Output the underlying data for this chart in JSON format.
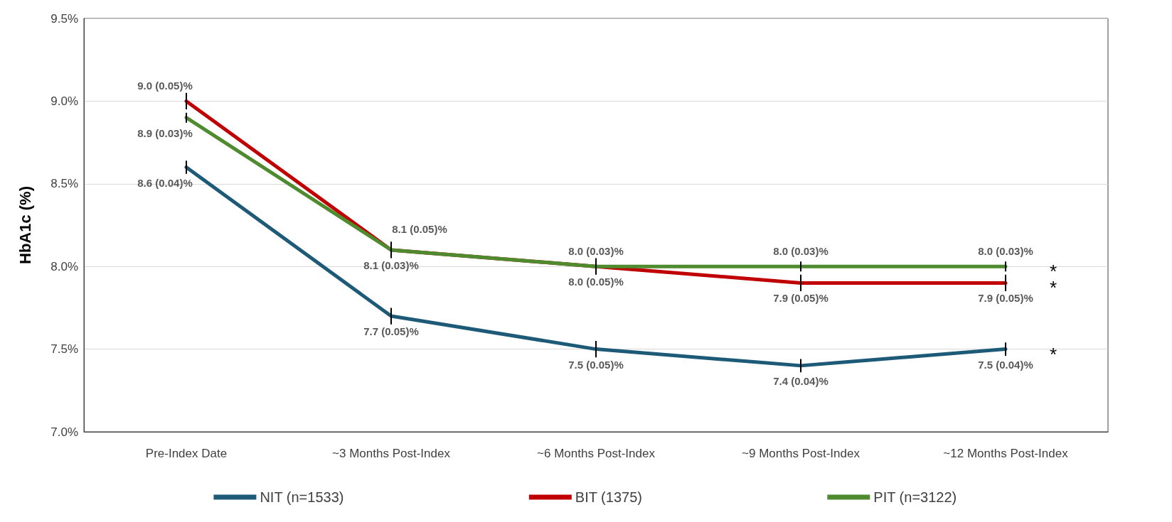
{
  "chart_data": {
    "type": "line",
    "ylabel": "HbA1c (%)",
    "categories": [
      "Pre-Index Date",
      "~3 Months Post-Index",
      "~6 Months Post-Index",
      "~9 Months Post-Index",
      "~12 Months Post-Index"
    ],
    "series": [
      {
        "name": "NIT (n=1533)",
        "color": "#1d5a78",
        "values": [
          8.6,
          7.7,
          7.5,
          7.4,
          7.5
        ],
        "errors": [
          0.04,
          0.05,
          0.05,
          0.04,
          0.04
        ],
        "value_labels": [
          "8.6 (0.04)%",
          "7.7 (0.05)%",
          "7.5 (0.05)%",
          "7.4 (0.04)%",
          "7.5 (0.04)%"
        ]
      },
      {
        "name": "BIT (1375)",
        "color": "#c00000",
        "values": [
          9.0,
          8.1,
          8.0,
          7.9,
          7.9
        ],
        "errors": [
          0.05,
          0.05,
          0.05,
          0.05,
          0.05
        ],
        "value_labels": [
          "9.0 (0.05)%",
          "8.1 (0.05)%",
          "8.0 (0.05)%",
          "7.9 (0.05)%",
          "7.9 (0.05)%"
        ]
      },
      {
        "name": "PIT (n=3122)",
        "color": "#4e8a2e",
        "values": [
          8.9,
          8.1,
          8.0,
          8.0,
          8.0
        ],
        "errors": [
          0.03,
          0.03,
          0.03,
          0.03,
          0.03
        ],
        "value_labels": [
          "8.9 (0.03)%",
          "8.1 (0.03)%",
          "8.0 (0.03)%",
          "8.0 (0.03)%",
          "8.0 (0.03)%"
        ]
      }
    ],
    "ylim": [
      7.0,
      9.5
    ],
    "yticks": [
      {
        "value": 7.0,
        "label": "7.0%"
      },
      {
        "value": 7.5,
        "label": "7.5%"
      },
      {
        "value": 8.0,
        "label": "8.0%"
      },
      {
        "value": 8.5,
        "label": "8.5%"
      },
      {
        "value": 9.0,
        "label": "9.0%"
      },
      {
        "value": 9.5,
        "label": "9.5%"
      }
    ],
    "grid": "y",
    "legend": "bottom",
    "marker": "none",
    "line_style": "solid",
    "annotations": [
      {
        "text": "*",
        "x": "~12 Months Post-Index",
        "y": 8.0
      },
      {
        "text": "*",
        "x": "~12 Months Post-Index",
        "y": 7.9
      },
      {
        "text": "*",
        "x": "~12 Months Post-Index",
        "y": 7.5
      }
    ]
  }
}
